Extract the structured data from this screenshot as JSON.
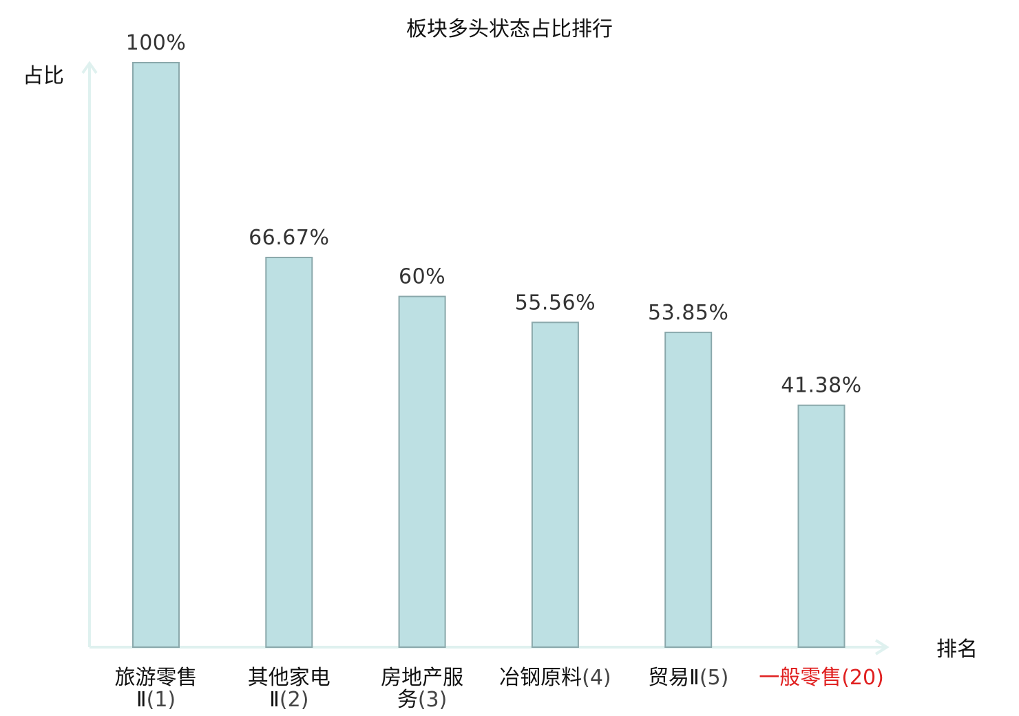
{
  "chart_data": {
    "type": "bar",
    "title": "板块多头状态占比排行",
    "ylabel": "占比",
    "xlabel": "排名",
    "ylim": [
      0,
      100
    ],
    "grid": false,
    "categories": [
      {
        "name_lines": [
          "旅游零售",
          "Ⅱ"
        ],
        "rank": "(1)",
        "value": 100,
        "value_label": "100%",
        "highlight": false
      },
      {
        "name_lines": [
          "其他家电",
          "Ⅱ"
        ],
        "rank": "(2)",
        "value": 66.67,
        "value_label": "66.67%",
        "highlight": false
      },
      {
        "name_lines": [
          "房地产服",
          "务"
        ],
        "rank": "(3)",
        "value": 60,
        "value_label": "60%",
        "highlight": false
      },
      {
        "name_lines": [
          "冶钢原料"
        ],
        "rank": "(4)",
        "value": 55.56,
        "value_label": "55.56%",
        "highlight": false
      },
      {
        "name_lines": [
          "贸易Ⅱ"
        ],
        "rank": "(5)",
        "value": 53.85,
        "value_label": "53.85%",
        "highlight": false
      },
      {
        "name_lines": [
          "一般零售"
        ],
        "rank": "(20)",
        "value": 41.38,
        "value_label": "41.38%",
        "highlight": true
      }
    ],
    "colors": {
      "bar_fill": "#bde0e3",
      "bar_stroke": "#8aa8ab",
      "axis": "#dff1ef",
      "highlight_text": "#e02020"
    }
  }
}
